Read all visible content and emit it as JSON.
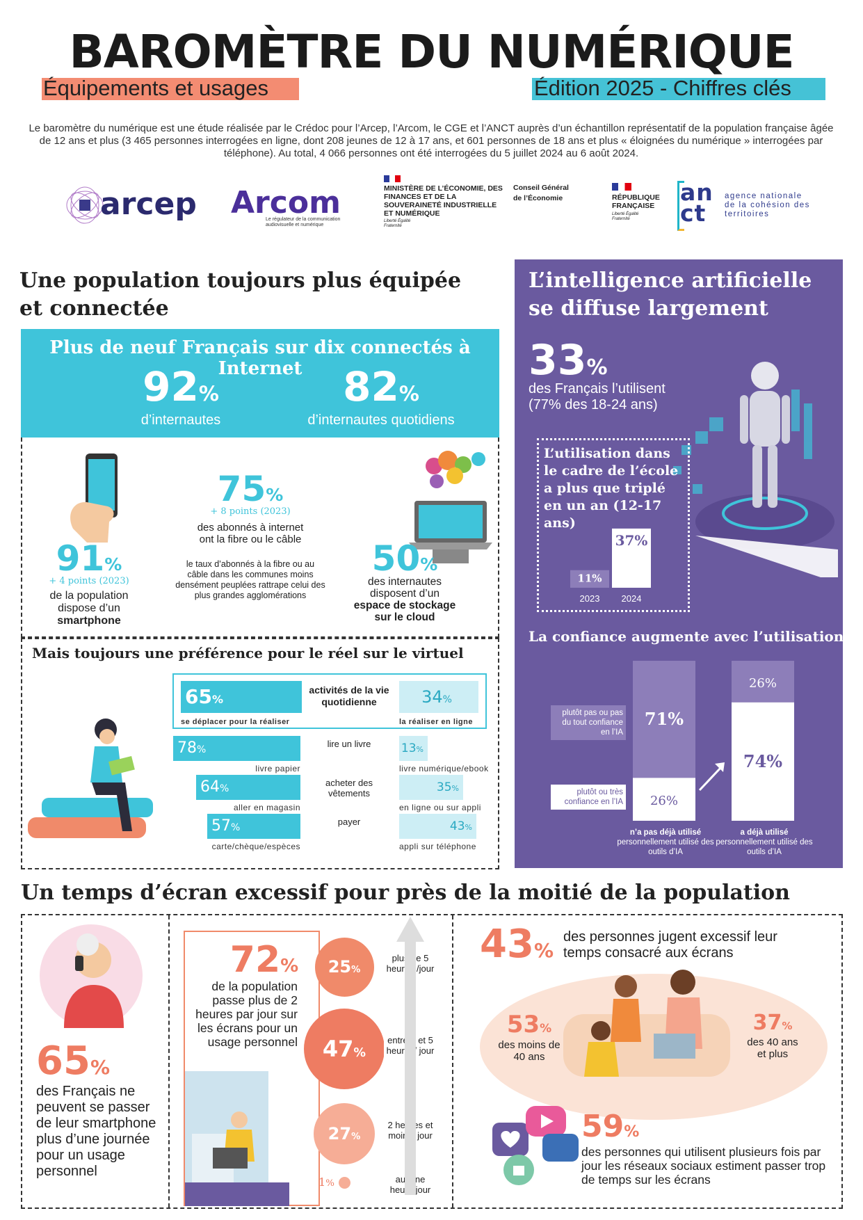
{
  "header": {
    "title": "BAROMÈTRE DU NUMÉRIQUE",
    "subtitle_left": "Équipements et usages",
    "subtitle_right": "Édition 2025 - Chiffres clés",
    "intro": "Le baromètre du numérique est une étude réalisée par le Crédoc pour l’Arcep, l’Arcom, le CGE et l’ANCT auprès d’un échantillon représentatif de la population française âgée de 12 ans et plus (3 465 personnes interrogées en ligne, dont 208 jeunes de 12 à 17 ans, et 601 personnes de 18 ans et plus « éloignées du numérique » interrogées par téléphone). Au total, 4 066 personnes ont été interrogées du 5 juillet 2024 au 6 août 2024."
  },
  "logos": {
    "arcep": "arcep",
    "arcom": "Arcom",
    "arcom_tag": "Le régulateur de la communication audiovisuelle et numérique",
    "ministere": "MINISTÈRE DE L’ÉCONOMIE, DES FINANCES ET DE LA SOUVERAINETÉ INDUSTRIELLE ET NUMÉRIQUE",
    "devise": "Liberté Égalité Fraternité",
    "cge": "Conseil Général de l’Économie",
    "republique": "RÉPUBLIQUE FRANÇAISE",
    "anct_logo": "an ct",
    "anct": "agence nationale de la cohésion des territoires"
  },
  "s1": {
    "title_l1": "Une population toujours plus équipée",
    "title_l2": "et connectée",
    "banner": {
      "title": "Plus de neuf Français sur dix connectés à Internet",
      "stat1": "92",
      "stat1_label": "d’internautes",
      "stat2": "82",
      "stat2_label": "d’internautes quotidiens"
    },
    "smartphone": {
      "value": "91",
      "delta": "+ 4 points (2023)",
      "l1": "de la population",
      "l2": "dispose d’un",
      "l3": "smartphone"
    },
    "fibre": {
      "value": "75",
      "delta": "+ 8 points (2023)",
      "l1": "des abonnés à internet",
      "l2": "ont la fibre ou le câble",
      "note": "le taux d’abonnés à la fibre ou au câble dans les communes moins densément peuplées rattrape celui des plus grandes agglomérations"
    },
    "cloud": {
      "value": "50",
      "l1": "des internautes",
      "l2": "disposent d’un",
      "l3": "espace de stockage",
      "l4": "sur le cloud"
    },
    "pref": {
      "title": "Mais toujours une préférence pour le réel sur le virtuel",
      "header": {
        "left": "65",
        "left_cap": "se déplacer pour la réaliser",
        "mid": "activités de la vie quotidienne",
        "right": "34",
        "right_cap": "la réaliser en ligne"
      },
      "rows": [
        {
          "left": "78",
          "left_cap": "livre papier",
          "mid": "lire un livre",
          "right": "13",
          "right_cap": "livre numérique/ebook"
        },
        {
          "left": "64",
          "left_cap": "aller en magasin",
          "mid": "acheter des vêtements",
          "right": "35",
          "right_cap": "en ligne ou sur appli"
        },
        {
          "left": "57",
          "left_cap": "carte/chèque/espèces",
          "mid": "payer",
          "right": "43",
          "right_cap": "appli sur téléphone"
        }
      ]
    }
  },
  "s2": {
    "title_l1": "L’intelligence artificielle",
    "title_l2": "se diffuse largement",
    "stat": "33",
    "l1": "des Français l’utilisent",
    "l2": "(77% des 18-24 ans)",
    "school": {
      "title": "L’utilisation dans le cadre de l’école a plus que triplé en un an (12-17 ans)"
    },
    "trust": {
      "title": "La confiance augmente avec l’utilisation",
      "lbl_no": "plutôt pas ou pas du tout confiance en l’IA",
      "lbl_yes": "plutôt ou très confiance en l’IA",
      "g1_l1": "n’a pas déjà utilisé",
      "g1_l2": "personnellement utilisé des outils d’IA",
      "g2_l1": "a déjà utilisé",
      "g2_l2": "personnellement utilisé des outils d’IA"
    }
  },
  "s3": {
    "title": "Un temps d’écran excessif pour près de la moitié de la population",
    "phone": {
      "value": "65",
      "text": "des Français ne peuvent se passer de leur smartphone plus d’une journée pour un usage personnel"
    },
    "daily": {
      "value": "72",
      "text": "de la population passe plus de 2 heures par jour sur les écrans pour un usage personnel"
    },
    "excess": {
      "value": "43",
      "text": "des personnes jugent excessif leur temps consacré aux écrans",
      "young": "53",
      "young_lbl": "des moins de 40 ans",
      "old": "37",
      "old_lbl": "des 40 ans et plus"
    },
    "social": {
      "value": "59",
      "text": "des personnes qui utilisent plusieurs fois par jour les réseaux sociaux estiment passer trop de temps sur les écrans"
    }
  },
  "chart_data": [
    {
      "type": "bar",
      "categories": [
        "2023",
        "2024"
      ],
      "values": [
        11,
        37
      ],
      "ylim": [
        0,
        40
      ]
    },
    {
      "type": "bar",
      "categories": [
        "n’a pas déjà utilisé",
        "a déjà utilisé"
      ],
      "series": [
        {
          "name": "plutôt pas ou pas du tout confiance en l’IA",
          "values": [
            71,
            26
          ]
        },
        {
          "name": "plutôt ou très confiance en l’IA",
          "values": [
            26,
            74
          ]
        }
      ],
      "ylim": [
        0,
        100
      ]
    },
    {
      "type": "bar",
      "categories": [
        "plus de 5 heures /jour",
        "entre 2 et 5 heures/ jour",
        "2 heures et moins/ jour",
        "aucune heure/jour"
      ],
      "values": [
        25,
        47,
        27,
        1
      ]
    }
  ],
  "colors": {
    "cyan": "#3fc4da",
    "purple": "#6a5a9f",
    "orange": "#ee7c62",
    "salmon": "#f4a58d"
  },
  "icons": [
    "smartphone-icon",
    "laptop-cloud-icon",
    "reader-icon",
    "robot-icon",
    "grandma-phone-icon",
    "family-icon",
    "social-icons",
    "arrow-up-icon"
  ]
}
